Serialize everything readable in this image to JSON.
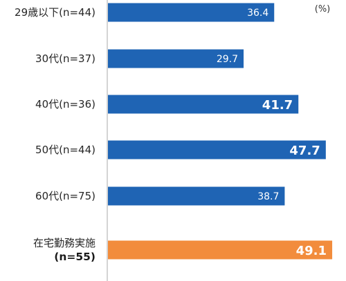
{
  "chart_data": {
    "type": "bar",
    "orientation": "horizontal",
    "unit_label": "(%)",
    "categories": [
      {
        "label": "29歳以下(n=44)",
        "value": 36.4,
        "emphasis": false,
        "highlight": false
      },
      {
        "label": "30代(n=37)",
        "value": 29.7,
        "emphasis": false,
        "highlight": false
      },
      {
        "label": "40代(n=36)",
        "value": 41.7,
        "emphasis": true,
        "highlight": false
      },
      {
        "label": "50代(n=44)",
        "value": 47.7,
        "emphasis": true,
        "highlight": false
      },
      {
        "label": "60代(n=75)",
        "value": 38.7,
        "emphasis": false,
        "highlight": false
      },
      {
        "label": [
          "在宅勤務実施",
          "(n=55)"
        ],
        "value": 49.1,
        "emphasis": true,
        "highlight": true
      }
    ],
    "xlim": [
      0,
      50
    ],
    "grid": false,
    "colors": {
      "bar": "#1f64b4",
      "highlight": "#f28c3c",
      "axis": "#aaaaaa"
    }
  }
}
